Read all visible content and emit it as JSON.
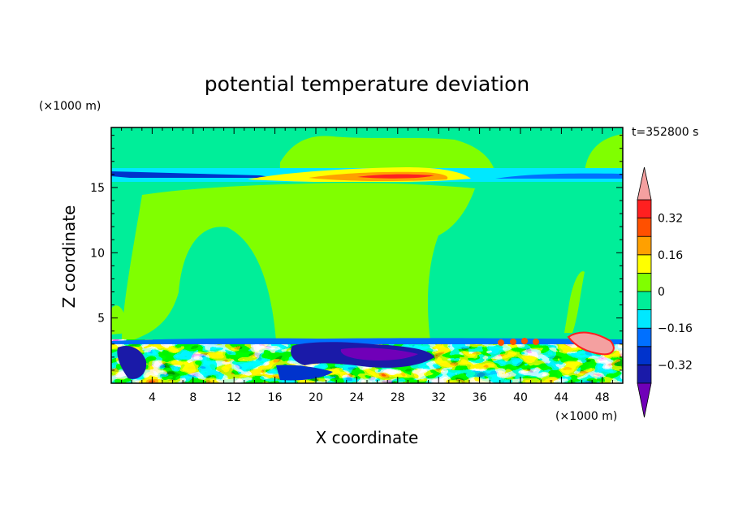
{
  "chart_data": {
    "type": "heatmap",
    "title": "potential temperature deviation",
    "time_label": "t=352800 s",
    "xlabel": "X coordinate",
    "ylabel": "Z coordinate",
    "x_unit": "(×1000 m)",
    "y_unit": "(×1000 m)",
    "xlim": [
      0,
      50
    ],
    "ylim": [
      0,
      19.6
    ],
    "x_ticks": [
      "4",
      "8",
      "12",
      "16",
      "20",
      "24",
      "28",
      "32",
      "36",
      "40",
      "44",
      "48"
    ],
    "x_tick_values": [
      4,
      8,
      12,
      16,
      20,
      24,
      28,
      32,
      36,
      40,
      44,
      48
    ],
    "y_ticks": [
      "5",
      "10",
      "15"
    ],
    "y_tick_values": [
      5,
      10,
      15
    ],
    "colorbar": {
      "levels": [
        -0.4,
        -0.32,
        -0.24,
        -0.16,
        -0.08,
        0,
        0.08,
        0.16,
        0.24,
        0.32,
        0.4
      ],
      "tick_labels": [
        "0.32",
        "0.16",
        "0",
        "−0.16",
        "−0.32"
      ],
      "tick_values": [
        0.32,
        0.16,
        0,
        -0.16,
        -0.32
      ],
      "colors": [
        "#7000b8",
        "#1a1aa8",
        "#0033cc",
        "#0070ff",
        "#00e8ff",
        "#00ee99",
        "#80ff00",
        "#ffff00",
        "#ffa000",
        "#ff5000",
        "#ff2020",
        "#f4a0a0"
      ]
    },
    "regions": [
      {
        "name": "upper background",
        "x": [
          0,
          50
        ],
        "z": [
          16.3,
          19.6
        ],
        "value": 0
      },
      {
        "name": "tropopause inversion band",
        "x": [
          0,
          50
        ],
        "z": [
          15.6,
          16.3
        ],
        "value": -0.2
      },
      {
        "name": "tropopause warm anomaly",
        "x": [
          13,
          33
        ],
        "z": [
          15.7,
          16.2
        ],
        "value": 0.3
      },
      {
        "name": "middle column",
        "x": [
          0,
          50
        ],
        "z": [
          3.5,
          15.6
        ],
        "value": 0.05
      },
      {
        "name": "boundary layer",
        "x": [
          0,
          50
        ],
        "z": [
          0,
          3.5
        ],
        "value": 0.1
      },
      {
        "name": "cold pool near x=20-30",
        "x": [
          17,
          31
        ],
        "z": [
          0.2,
          3.2
        ],
        "value": -0.35
      },
      {
        "name": "warm anomaly near x=46",
        "x": [
          43,
          50
        ],
        "z": [
          2.3,
          4.0
        ],
        "value": 0.4
      }
    ]
  }
}
